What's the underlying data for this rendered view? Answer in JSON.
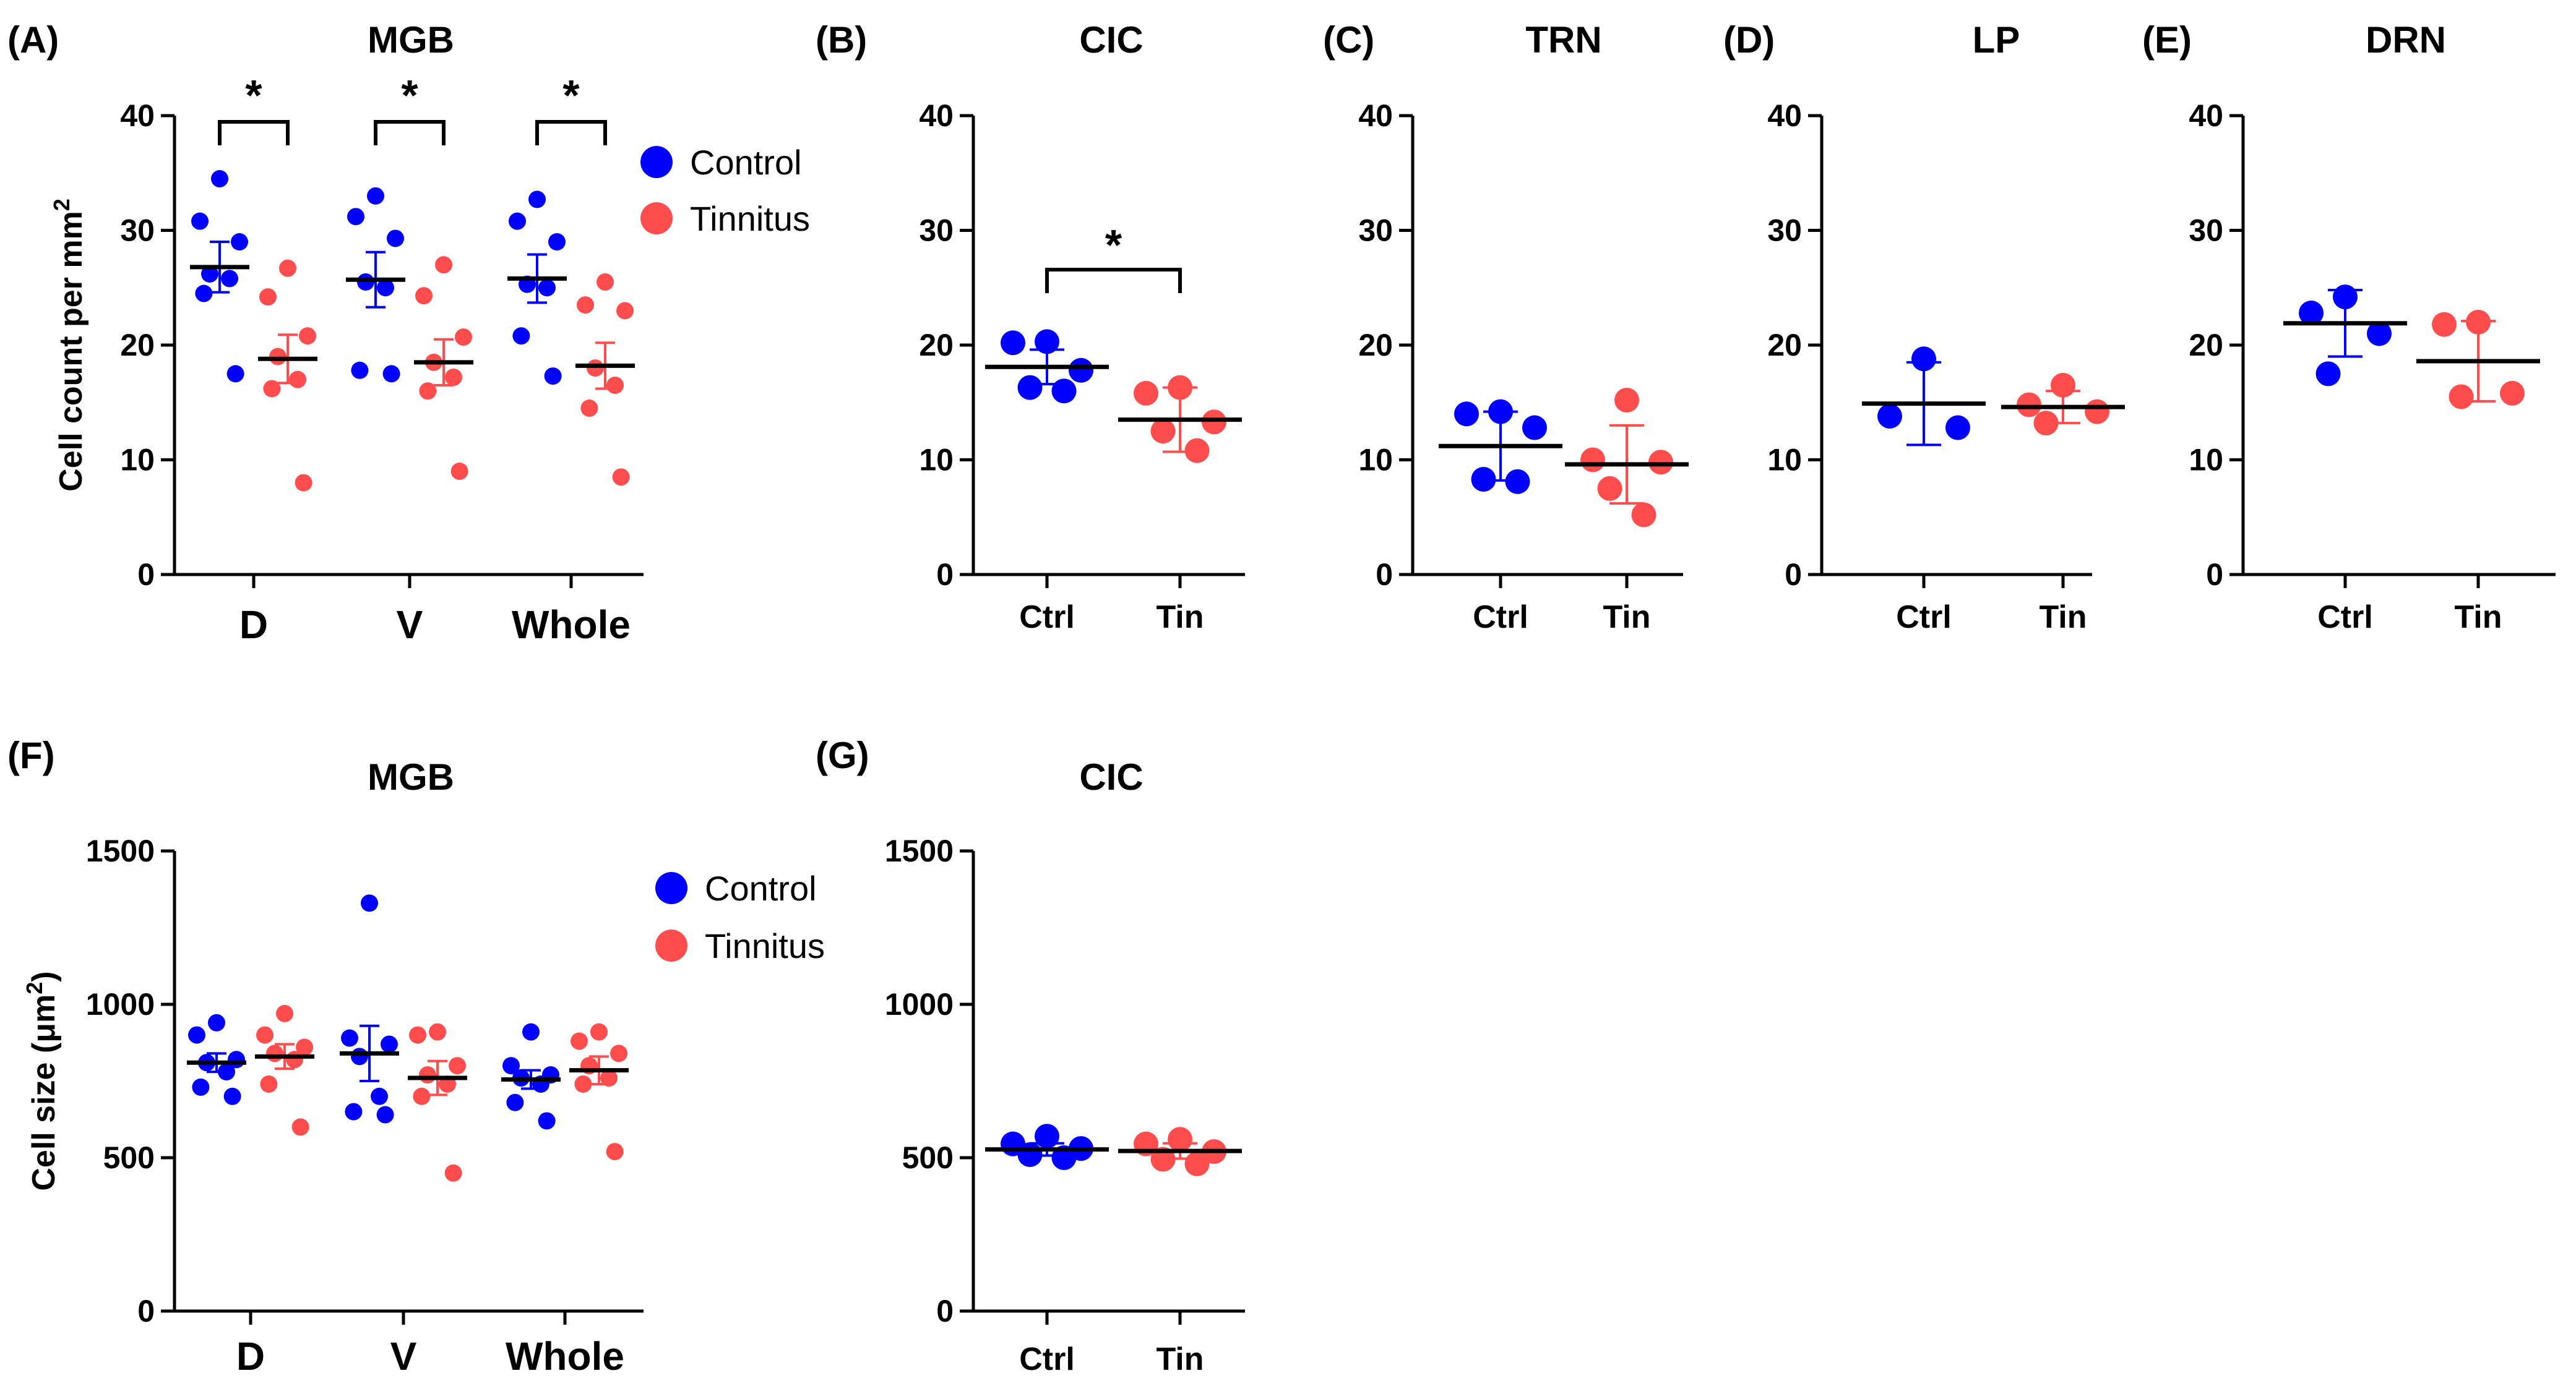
{
  "colors": {
    "control": "#0000ff",
    "tinnitus": "#ff4d4d",
    "axis": "#000000"
  },
  "legend": {
    "control": "Control",
    "tinnitus": "Tinnitus"
  },
  "chart_data": [
    {
      "id": "A",
      "panel_label": "(A)",
      "title": "MGB",
      "type": "scatter",
      "ylabel": "Cell count per mm",
      "ylabel_sup": "2",
      "ylim": [
        0,
        40
      ],
      "yticks": [
        "0",
        "10",
        "20",
        "30",
        "40"
      ],
      "categories": [
        "D",
        "V",
        "Whole"
      ],
      "series": [
        {
          "name": "Control",
          "groups": [
            {
              "points": [
                34.5,
                30.8,
                29.0,
                26.2,
                25.8,
                24.5,
                17.5
              ],
              "mean": 26.8,
              "sem": 2.2
            },
            {
              "points": [
                33.0,
                31.2,
                29.3,
                25.5,
                25.0,
                17.8,
                17.5
              ],
              "mean": 25.7,
              "sem": 2.4
            },
            {
              "points": [
                32.7,
                30.8,
                29.0,
                25.3,
                25.0,
                20.8,
                17.3
              ],
              "mean": 25.8,
              "sem": 2.1
            }
          ]
        },
        {
          "name": "Tinnitus",
          "groups": [
            {
              "points": [
                26.7,
                24.2,
                20.8,
                19.0,
                17.0,
                16.2,
                8.0
              ],
              "mean": 18.8,
              "sem": 2.1
            },
            {
              "points": [
                27.0,
                24.3,
                20.7,
                18.5,
                17.2,
                16.0,
                9.0
              ],
              "mean": 18.5,
              "sem": 2.0
            },
            {
              "points": [
                25.5,
                23.5,
                23.0,
                18.0,
                16.5,
                14.5,
                8.5
              ],
              "mean": 18.2,
              "sem": 2.0
            }
          ]
        }
      ],
      "significance": [
        {
          "category": "D",
          "label": "*"
        },
        {
          "category": "V",
          "label": "*"
        },
        {
          "category": "Whole",
          "label": "*"
        }
      ]
    },
    {
      "id": "B",
      "panel_label": "(B)",
      "title": "CIC",
      "type": "scatter",
      "ylim": [
        0,
        40
      ],
      "yticks": [
        "0",
        "10",
        "20",
        "30",
        "40"
      ],
      "categories": [
        "Ctrl",
        "Tin"
      ],
      "series": [
        {
          "name": "Control",
          "points": [
            20.3,
            20.2,
            17.8,
            16.3,
            16.0
          ],
          "mean": 18.1,
          "sem": 1.5
        },
        {
          "name": "Tinnitus",
          "points": [
            16.3,
            15.8,
            13.3,
            12.5,
            10.8
          ],
          "mean": 13.5,
          "sem": 2.8
        }
      ],
      "significance": [
        {
          "between": [
            "Ctrl",
            "Tin"
          ],
          "label": "*"
        }
      ]
    },
    {
      "id": "C",
      "panel_label": "(C)",
      "title": "TRN",
      "type": "scatter",
      "ylim": [
        0,
        40
      ],
      "yticks": [
        "0",
        "10",
        "20",
        "30",
        "40"
      ],
      "categories": [
        "Ctrl",
        "Tin"
      ],
      "series": [
        {
          "name": "Control",
          "points": [
            14.2,
            14.0,
            12.8,
            8.3,
            8.1
          ],
          "mean": 11.2,
          "sem": 3.0
        },
        {
          "name": "Tinnitus",
          "points": [
            15.2,
            10.0,
            9.8,
            7.5,
            5.2
          ],
          "mean": 9.6,
          "sem": 3.4
        }
      ]
    },
    {
      "id": "D",
      "panel_label": "(D)",
      "title": "LP",
      "type": "scatter",
      "ylim": [
        0,
        40
      ],
      "yticks": [
        "0",
        "10",
        "20",
        "30",
        "40"
      ],
      "categories": [
        "Ctrl",
        "Tin"
      ],
      "series": [
        {
          "name": "Control",
          "points": [
            18.8,
            13.8,
            12.8
          ],
          "mean": 14.9,
          "sem": 3.6
        },
        {
          "name": "Tinnitus",
          "points": [
            16.5,
            14.8,
            14.2,
            13.2
          ],
          "mean": 14.6,
          "sem": 1.4
        }
      ]
    },
    {
      "id": "E",
      "panel_label": "(E)",
      "title": "DRN",
      "type": "scatter",
      "ylim": [
        0,
        40
      ],
      "yticks": [
        "0",
        "10",
        "20",
        "30",
        "40"
      ],
      "categories": [
        "Ctrl",
        "Tin"
      ],
      "series": [
        {
          "name": "Control",
          "points": [
            24.2,
            22.8,
            21.0,
            17.5
          ],
          "mean": 21.9,
          "sem": 2.9
        },
        {
          "name": "Tinnitus",
          "points": [
            22.0,
            21.8,
            15.8,
            15.5
          ],
          "mean": 18.6,
          "sem": 3.5
        }
      ]
    },
    {
      "id": "F",
      "panel_label": "(F)",
      "title": "MGB",
      "type": "scatter",
      "ylabel": "Cell size (μm",
      "ylabel_sup": "2",
      "ylabel_close": ")",
      "ylim": [
        0,
        1500
      ],
      "yticks": [
        "0",
        "500",
        "1000",
        "1500"
      ],
      "categories": [
        "D",
        "V",
        "Whole"
      ],
      "series": [
        {
          "name": "Control",
          "groups": [
            {
              "points": [
                940,
                900,
                820,
                810,
                780,
                730,
                700
              ],
              "mean": 810,
              "sem": 30
            },
            {
              "points": [
                1330,
                890,
                870,
                830,
                700,
                650,
                640
              ],
              "mean": 840,
              "sem": 90
            },
            {
              "points": [
                910,
                800,
                770,
                760,
                740,
                680,
                620
              ],
              "mean": 755,
              "sem": 30
            }
          ]
        },
        {
          "name": "Tinnitus",
          "groups": [
            {
              "points": [
                970,
                900,
                860,
                840,
                820,
                740,
                600
              ],
              "mean": 830,
              "sem": 40
            },
            {
              "points": [
                910,
                900,
                800,
                770,
                740,
                700,
                450
              ],
              "mean": 760,
              "sem": 55
            },
            {
              "points": [
                910,
                880,
                840,
                800,
                760,
                740,
                520
              ],
              "mean": 785,
              "sem": 45
            }
          ]
        }
      ]
    },
    {
      "id": "G",
      "panel_label": "(G)",
      "title": "CIC",
      "type": "scatter",
      "ylim": [
        0,
        1500
      ],
      "yticks": [
        "0",
        "500",
        "1000",
        "1500"
      ],
      "categories": [
        "Ctrl",
        "Tin"
      ],
      "series": [
        {
          "name": "Control",
          "points": [
            570,
            545,
            530,
            510,
            500
          ],
          "mean": 527,
          "sem": 20
        },
        {
          "name": "Tinnitus",
          "points": [
            560,
            545,
            520,
            495,
            480
          ],
          "mean": 522,
          "sem": 25
        }
      ]
    }
  ]
}
